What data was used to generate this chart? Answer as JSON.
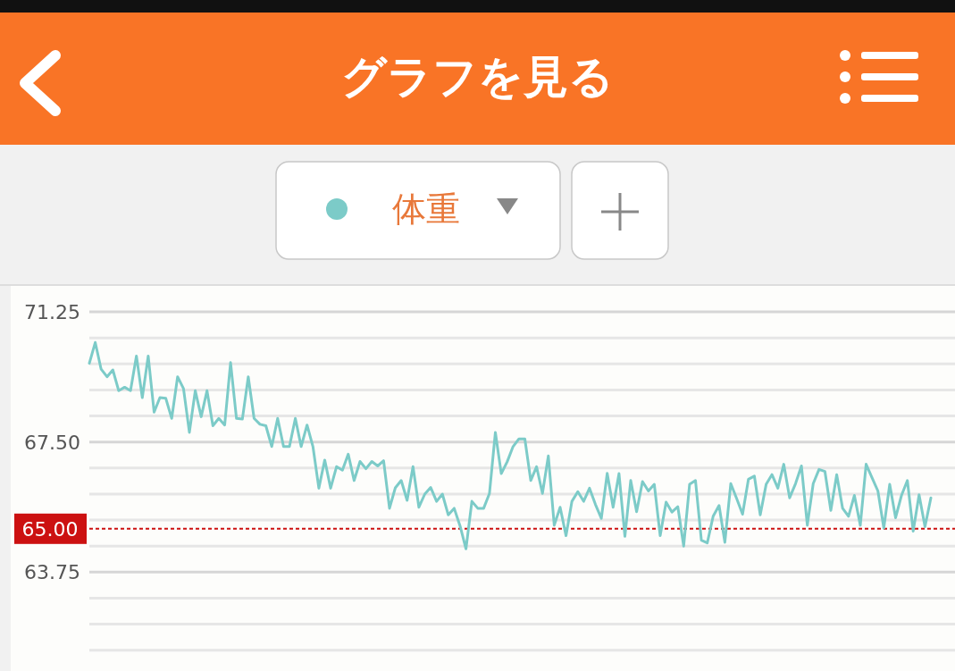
{
  "chart_data": {
    "type": "line",
    "title": "グラフを見る",
    "categories": [
      null,
      null,
      null,
      null,
      null,
      null,
      null,
      null,
      null,
      null,
      null,
      null,
      null,
      null,
      null,
      null,
      null,
      null,
      null,
      null,
      null,
      null,
      null,
      null,
      null,
      null,
      null,
      null,
      null,
      null,
      null,
      null,
      null,
      null,
      null,
      null,
      null,
      null,
      null,
      null,
      null,
      null,
      null,
      null,
      null,
      null,
      null,
      null,
      null,
      null,
      null,
      null,
      null,
      null,
      null,
      null,
      null,
      null,
      null,
      null,
      null,
      null,
      null,
      null,
      null,
      null,
      null,
      null,
      null,
      null,
      null,
      null,
      null,
      null,
      null,
      null,
      null,
      null,
      null,
      null,
      null,
      null,
      null,
      null,
      null,
      null,
      null,
      null,
      null,
      null,
      null,
      null,
      null,
      null,
      null,
      null,
      null,
      null,
      null,
      null,
      null,
      null,
      null,
      null,
      null,
      null,
      null,
      null,
      null,
      null,
      null,
      null,
      null,
      null,
      null,
      null,
      null,
      null,
      null,
      null,
      null,
      null,
      null,
      null,
      null,
      null,
      null,
      null,
      null,
      null,
      null,
      null,
      null,
      null,
      null,
      null,
      null,
      null,
      null,
      null,
      null,
      null,
      null,
      null
    ],
    "series": [
      {
        "name": "体重",
        "color": "#7ccbc8",
        "values": [
          69.77,
          70.37,
          69.6,
          69.38,
          69.58,
          68.98,
          69.08,
          68.98,
          69.98,
          68.78,
          69.98,
          68.36,
          68.78,
          68.76,
          68.18,
          69.38,
          69.04,
          67.78,
          68.98,
          68.23,
          68.98,
          67.97,
          68.18,
          67.99,
          69.79,
          68.18,
          68.16,
          69.38,
          68.18,
          68.01,
          67.97,
          67.37,
          68.18,
          67.37,
          67.37,
          68.18,
          67.37,
          67.99,
          67.37,
          66.17,
          66.98,
          66.17,
          66.79,
          66.69,
          67.15,
          66.39,
          66.94,
          66.73,
          66.94,
          66.81,
          66.96,
          65.59,
          66.18,
          66.39,
          65.82,
          66.79,
          65.62,
          66.0,
          66.19,
          65.79,
          66.0,
          65.4,
          65.59,
          65.08,
          64.42,
          65.79,
          65.59,
          65.59,
          66.02,
          67.78,
          66.59,
          66.93,
          67.37,
          67.59,
          67.59,
          66.39,
          66.79,
          66.02,
          67.1,
          65.1,
          65.62,
          64.8,
          65.79,
          66.07,
          65.79,
          66.17,
          65.7,
          65.3,
          66.6,
          65.62,
          66.59,
          64.78,
          66.39,
          65.49,
          66.36,
          66.09,
          66.28,
          64.8,
          65.77,
          65.48,
          65.64,
          64.5,
          66.28,
          66.39,
          64.67,
          64.59,
          65.36,
          65.67,
          64.61,
          66.3,
          65.87,
          65.42,
          66.43,
          66.52,
          65.4,
          66.28,
          66.56,
          66.17,
          66.86,
          65.89,
          66.3,
          66.81,
          65.1,
          66.3,
          66.71,
          66.65,
          65.53,
          66.56,
          65.59,
          65.36,
          65.96,
          65.1,
          66.86,
          66.47,
          66.09,
          65.02,
          66.28,
          65.32,
          65.96,
          66.39,
          64.93,
          65.98,
          65.06,
          65.89
        ]
      }
    ],
    "ylim": [
      60.9,
      72
    ],
    "yticks": [
      {
        "value": 71.25,
        "label": "71.25"
      },
      {
        "value": 70.5,
        "label": null
      },
      {
        "value": 69.75,
        "label": null
      },
      {
        "value": 69,
        "label": null
      },
      {
        "value": 68.25,
        "label": null
      },
      {
        "value": 67.5,
        "label": "67.50"
      },
      {
        "value": 66.75,
        "label": null
      },
      {
        "value": 66,
        "label": null
      },
      {
        "value": 65.25,
        "label": null
      },
      {
        "value": 64.5,
        "label": null
      },
      {
        "value": 63.75,
        "label": "63.75"
      },
      {
        "value": 63,
        "label": null
      },
      {
        "value": 62.25,
        "label": null
      },
      {
        "value": 61.5,
        "label": null
      }
    ],
    "ref_lines": [
      {
        "axis": "y",
        "value": 65,
        "label": "65.00",
        "color": "#cc1111",
        "line_style": "dotted"
      }
    ],
    "grid": "y",
    "legend": "top",
    "marker": "none",
    "line_style": "solid"
  }
}
